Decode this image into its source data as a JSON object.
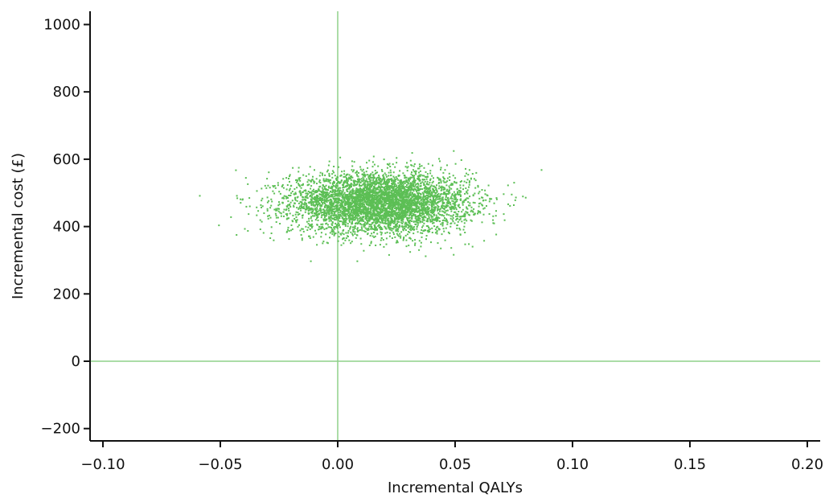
{
  "chart_data": {
    "type": "scatter",
    "title": "",
    "xlabel": "Incremental QALYs",
    "ylabel": "Incremental cost (£)",
    "xlim": [
      -0.105,
      0.205
    ],
    "ylim": [
      -235,
      1040
    ],
    "x_ticks": [
      -0.1,
      -0.05,
      0.0,
      0.05,
      0.1,
      0.15,
      0.2
    ],
    "x_tick_labels": [
      "−0.10",
      "−0.05",
      "0.00",
      "0.05",
      "0.10",
      "0.15",
      "0.20"
    ],
    "y_ticks": [
      -200,
      0,
      200,
      400,
      600,
      800,
      1000
    ],
    "y_tick_labels": [
      "−200",
      "0",
      "200",
      "400",
      "600",
      "800",
      "1000"
    ],
    "reference_lines": {
      "x": 0,
      "y": 0
    },
    "series": [
      {
        "color": "#5cbf55",
        "distribution": {
          "n": 5000,
          "x_mean": 0.018,
          "x_sd": 0.019,
          "y_mean": 470,
          "y_sd": 45,
          "x_range": [
            -0.06,
            0.097
          ],
          "y_range": [
            297,
            672
          ]
        }
      }
    ]
  }
}
